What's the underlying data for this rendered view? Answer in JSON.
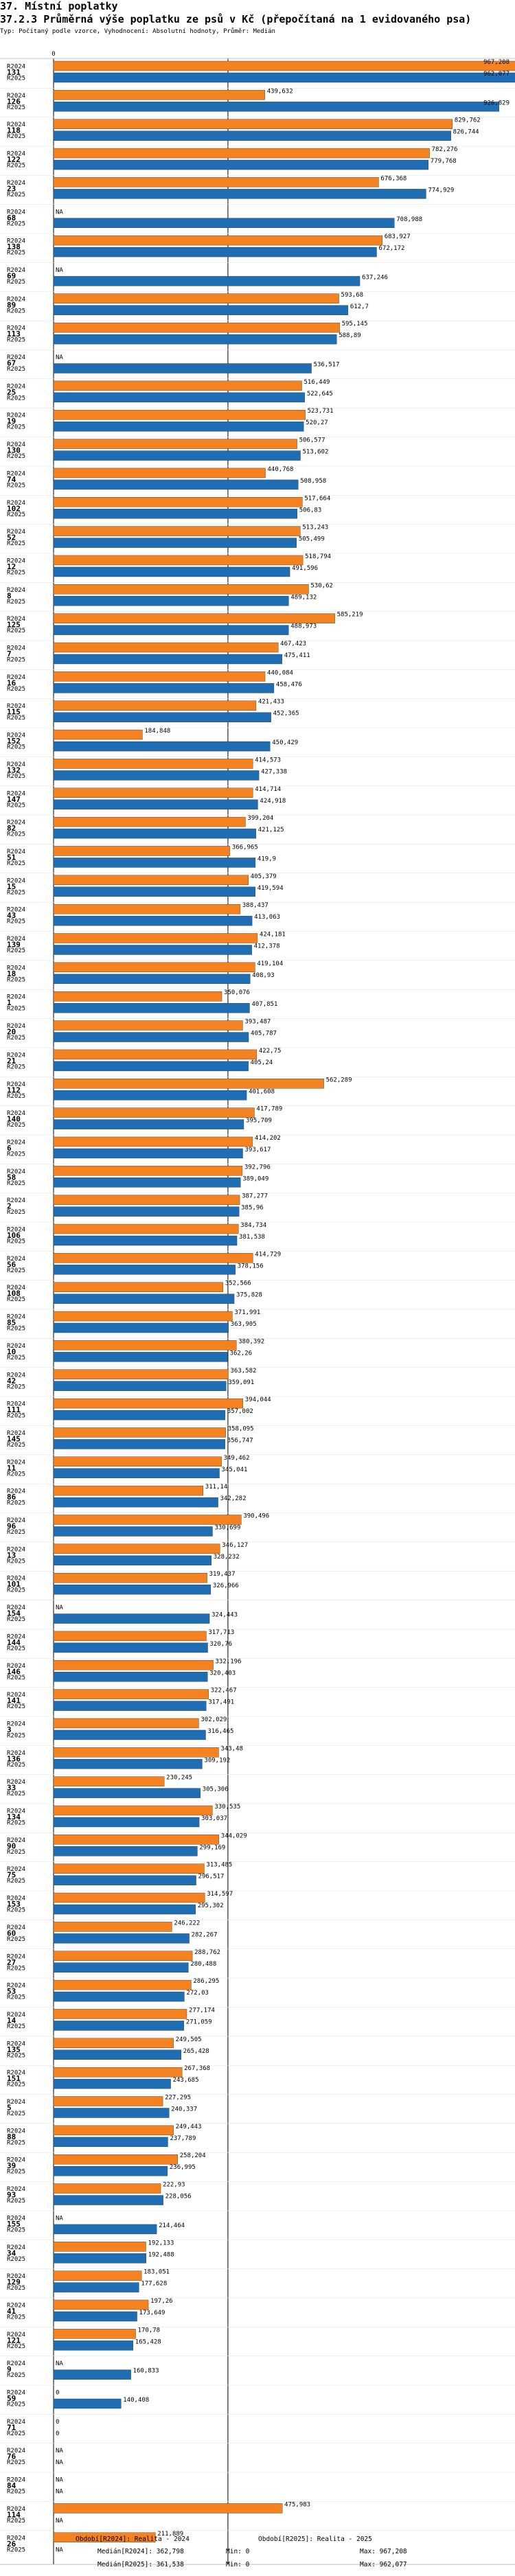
{
  "header": {
    "title": "37. Místní poplatky",
    "subtitle": "37.2.3 Průměrná výše poplatku ze psů v Kč (přepočítaná na 1 evidovaného psa)",
    "note": "Typ: Počítaný podle vzorce, Vyhodnocení: Absolutní hodnoty, Průměr: Medián"
  },
  "footer": {
    "period_2024": "Období[R2024]: Realita - 2024",
    "period_2025": "Období[R2025]: Realita - 2025",
    "median_2024": "Medián[R2024]: 362,798",
    "median_2025": "Medián[R2025]: 361,538",
    "min_2024": "Min: 0",
    "min_2025": "Min: 0",
    "max_2024": "Max: 967,208",
    "max_2025": "Max: 962,077"
  },
  "chart_data": {
    "type": "bar",
    "orientation": "horizontal",
    "title": "37.2.3 Průměrná výše poplatku ze psů v Kč (přepočítaná na 1 evidovaného psa)",
    "x_tick_label": "0",
    "xlim": [
      0,
      967.208
    ],
    "colors": {
      "R2024": "#f58220",
      "R2025": "#1f6db3"
    },
    "series_names": [
      "R2024",
      "R2025"
    ],
    "categories": [
      {
        "label": "131",
        "R2024": {
          "v": 967.208,
          "t": "967,208"
        },
        "R2025": {
          "v": 962.077,
          "t": "962,077"
        }
      },
      {
        "label": "126",
        "R2024": {
          "v": 439.632,
          "t": "439,632"
        },
        "R2025": {
          "v": 926.829,
          "t": "926,829"
        }
      },
      {
        "label": "118",
        "R2024": {
          "v": 829.762,
          "t": "829,762"
        },
        "R2025": {
          "v": 826.744,
          "t": "826,744"
        }
      },
      {
        "label": "122",
        "R2024": {
          "v": 782.276,
          "t": "782,276"
        },
        "R2025": {
          "v": 779.768,
          "t": "779,768"
        }
      },
      {
        "label": "23",
        "R2024": {
          "v": 676.368,
          "t": "676,368"
        },
        "R2025": {
          "v": 774.929,
          "t": "774,929"
        }
      },
      {
        "label": "68",
        "R2024": {
          "v": null,
          "t": "NA"
        },
        "R2025": {
          "v": 708.988,
          "t": "708,988"
        }
      },
      {
        "label": "138",
        "R2024": {
          "v": 683.927,
          "t": "683,927"
        },
        "R2025": {
          "v": 672.172,
          "t": "672,172"
        }
      },
      {
        "label": "69",
        "R2024": {
          "v": null,
          "t": "NA"
        },
        "R2025": {
          "v": 637.246,
          "t": "637,246"
        }
      },
      {
        "label": "89",
        "R2024": {
          "v": 593.68,
          "t": "593,68"
        },
        "R2025": {
          "v": 612.7,
          "t": "612,7"
        }
      },
      {
        "label": "113",
        "R2024": {
          "v": 595.145,
          "t": "595,145"
        },
        "R2025": {
          "v": 588.89,
          "t": "588,89"
        }
      },
      {
        "label": "67",
        "R2024": {
          "v": null,
          "t": "NA"
        },
        "R2025": {
          "v": 536.517,
          "t": "536,517"
        }
      },
      {
        "label": "25",
        "R2024": {
          "v": 516.449,
          "t": "516,449"
        },
        "R2025": {
          "v": 522.645,
          "t": "522,645"
        }
      },
      {
        "label": "19",
        "R2024": {
          "v": 523.731,
          "t": "523,731"
        },
        "R2025": {
          "v": 520.27,
          "t": "520,27"
        }
      },
      {
        "label": "130",
        "R2024": {
          "v": 506.577,
          "t": "506,577"
        },
        "R2025": {
          "v": 513.602,
          "t": "513,602"
        }
      },
      {
        "label": "74",
        "R2024": {
          "v": 440.768,
          "t": "440,768"
        },
        "R2025": {
          "v": 508.958,
          "t": "508,958"
        }
      },
      {
        "label": "102",
        "R2024": {
          "v": 517.664,
          "t": "517,664"
        },
        "R2025": {
          "v": 506.83,
          "t": "506,83"
        }
      },
      {
        "label": "52",
        "R2024": {
          "v": 513.243,
          "t": "513,243"
        },
        "R2025": {
          "v": 505.499,
          "t": "505,499"
        }
      },
      {
        "label": "12",
        "R2024": {
          "v": 518.794,
          "t": "518,794"
        },
        "R2025": {
          "v": 491.596,
          "t": "491,596"
        }
      },
      {
        "label": "8",
        "R2024": {
          "v": 530.62,
          "t": "530,62"
        },
        "R2025": {
          "v": 489.132,
          "t": "489,132"
        }
      },
      {
        "label": "125",
        "R2024": {
          "v": 585.219,
          "t": "585,219"
        },
        "R2025": {
          "v": 488.973,
          "t": "488,973"
        }
      },
      {
        "label": "7",
        "R2024": {
          "v": 467.423,
          "t": "467,423"
        },
        "R2025": {
          "v": 475.411,
          "t": "475,411"
        }
      },
      {
        "label": "16",
        "R2024": {
          "v": 440.084,
          "t": "440,084"
        },
        "R2025": {
          "v": 458.476,
          "t": "458,476"
        }
      },
      {
        "label": "115",
        "R2024": {
          "v": 421.433,
          "t": "421,433"
        },
        "R2025": {
          "v": 452.365,
          "t": "452,365"
        }
      },
      {
        "label": "152",
        "R2024": {
          "v": 184.848,
          "t": "184,848"
        },
        "R2025": {
          "v": 450.429,
          "t": "450,429"
        }
      },
      {
        "label": "132",
        "R2024": {
          "v": 414.573,
          "t": "414,573"
        },
        "R2025": {
          "v": 427.338,
          "t": "427,338"
        }
      },
      {
        "label": "147",
        "R2024": {
          "v": 414.714,
          "t": "414,714"
        },
        "R2025": {
          "v": 424.918,
          "t": "424,918"
        }
      },
      {
        "label": "82",
        "R2024": {
          "v": 399.204,
          "t": "399,204"
        },
        "R2025": {
          "v": 421.125,
          "t": "421,125"
        }
      },
      {
        "label": "51",
        "R2024": {
          "v": 366.965,
          "t": "366,965"
        },
        "R2025": {
          "v": 419.9,
          "t": "419,9"
        }
      },
      {
        "label": "15",
        "R2024": {
          "v": 405.379,
          "t": "405,379"
        },
        "R2025": {
          "v": 419.594,
          "t": "419,594"
        }
      },
      {
        "label": "43",
        "R2024": {
          "v": 388.437,
          "t": "388,437"
        },
        "R2025": {
          "v": 413.063,
          "t": "413,063"
        }
      },
      {
        "label": "139",
        "R2024": {
          "v": 424.181,
          "t": "424,181"
        },
        "R2025": {
          "v": 412.378,
          "t": "412,378"
        }
      },
      {
        "label": "18",
        "R2024": {
          "v": 419.104,
          "t": "419,104"
        },
        "R2025": {
          "v": 408.93,
          "t": "408,93"
        }
      },
      {
        "label": "1",
        "R2024": {
          "v": 350.076,
          "t": "350,076"
        },
        "R2025": {
          "v": 407.851,
          "t": "407,851"
        }
      },
      {
        "label": "20",
        "R2024": {
          "v": 393.487,
          "t": "393,487"
        },
        "R2025": {
          "v": 405.787,
          "t": "405,787"
        }
      },
      {
        "label": "21",
        "R2024": {
          "v": 422.75,
          "t": "422,75"
        },
        "R2025": {
          "v": 405.24,
          "t": "405,24"
        }
      },
      {
        "label": "112",
        "R2024": {
          "v": 562.289,
          "t": "562,289"
        },
        "R2025": {
          "v": 401.608,
          "t": "401,608"
        }
      },
      {
        "label": "140",
        "R2024": {
          "v": 417.789,
          "t": "417,789"
        },
        "R2025": {
          "v": 395.709,
          "t": "395,709"
        }
      },
      {
        "label": "6",
        "R2024": {
          "v": 414.202,
          "t": "414,202"
        },
        "R2025": {
          "v": 393.617,
          "t": "393,617"
        }
      },
      {
        "label": "58",
        "R2024": {
          "v": 392.796,
          "t": "392,796"
        },
        "R2025": {
          "v": 389.049,
          "t": "389,049"
        }
      },
      {
        "label": "2",
        "R2024": {
          "v": 387.277,
          "t": "387,277"
        },
        "R2025": {
          "v": 385.96,
          "t": "385,96"
        }
      },
      {
        "label": "106",
        "R2024": {
          "v": 384.734,
          "t": "384,734"
        },
        "R2025": {
          "v": 381.538,
          "t": "381,538"
        }
      },
      {
        "label": "56",
        "R2024": {
          "v": 414.729,
          "t": "414,729"
        },
        "R2025": {
          "v": 378.156,
          "t": "378,156"
        }
      },
      {
        "label": "108",
        "R2024": {
          "v": 352.566,
          "t": "352,566"
        },
        "R2025": {
          "v": 375.828,
          "t": "375,828"
        }
      },
      {
        "label": "85",
        "R2024": {
          "v": 371.991,
          "t": "371,991"
        },
        "R2025": {
          "v": 363.905,
          "t": "363,905"
        }
      },
      {
        "label": "10",
        "R2024": {
          "v": 380.392,
          "t": "380,392"
        },
        "R2025": {
          "v": 362.26,
          "t": "362,26"
        }
      },
      {
        "label": "42",
        "R2024": {
          "v": 363.582,
          "t": "363,582"
        },
        "R2025": {
          "v": 359.091,
          "t": "359,091"
        }
      },
      {
        "label": "111",
        "R2024": {
          "v": 394.044,
          "t": "394,044"
        },
        "R2025": {
          "v": 357.002,
          "t": "357,002"
        }
      },
      {
        "label": "145",
        "R2024": {
          "v": 358.095,
          "t": "358,095"
        },
        "R2025": {
          "v": 356.747,
          "t": "356,747"
        }
      },
      {
        "label": "11",
        "R2024": {
          "v": 349.462,
          "t": "349,462"
        },
        "R2025": {
          "v": 345.041,
          "t": "345,041"
        }
      },
      {
        "label": "86",
        "R2024": {
          "v": 311.14,
          "t": "311,14"
        },
        "R2025": {
          "v": 342.282,
          "t": "342,282"
        }
      },
      {
        "label": "96",
        "R2024": {
          "v": 390.496,
          "t": "390,496"
        },
        "R2025": {
          "v": 330.699,
          "t": "330,699"
        }
      },
      {
        "label": "13",
        "R2024": {
          "v": 346.127,
          "t": "346,127"
        },
        "R2025": {
          "v": 328.232,
          "t": "328,232"
        }
      },
      {
        "label": "101",
        "R2024": {
          "v": 319.437,
          "t": "319,437"
        },
        "R2025": {
          "v": 326.966,
          "t": "326,966"
        }
      },
      {
        "label": "154",
        "R2024": {
          "v": null,
          "t": "NA"
        },
        "R2025": {
          "v": 324.443,
          "t": "324,443"
        }
      },
      {
        "label": "144",
        "R2024": {
          "v": 317.713,
          "t": "317,713"
        },
        "R2025": {
          "v": 320.76,
          "t": "320,76"
        }
      },
      {
        "label": "146",
        "R2024": {
          "v": 332.196,
          "t": "332,196"
        },
        "R2025": {
          "v": 320.403,
          "t": "320,403"
        }
      },
      {
        "label": "141",
        "R2024": {
          "v": 322.467,
          "t": "322,467"
        },
        "R2025": {
          "v": 317.491,
          "t": "317,491"
        }
      },
      {
        "label": "3",
        "R2024": {
          "v": 302.029,
          "t": "302,029"
        },
        "R2025": {
          "v": 316.465,
          "t": "316,465"
        }
      },
      {
        "label": "136",
        "R2024": {
          "v": 343.48,
          "t": "343,48"
        },
        "R2025": {
          "v": 309.192,
          "t": "309,192"
        }
      },
      {
        "label": "33",
        "R2024": {
          "v": 230.245,
          "t": "230,245"
        },
        "R2025": {
          "v": 305.306,
          "t": "305,306"
        }
      },
      {
        "label": "134",
        "R2024": {
          "v": 330.535,
          "t": "330,535"
        },
        "R2025": {
          "v": 303.037,
          "t": "303,037"
        }
      },
      {
        "label": "90",
        "R2024": {
          "v": 344.029,
          "t": "344,029"
        },
        "R2025": {
          "v": 299.169,
          "t": "299,169"
        }
      },
      {
        "label": "75",
        "R2024": {
          "v": 313.485,
          "t": "313,485"
        },
        "R2025": {
          "v": 296.517,
          "t": "296,517"
        }
      },
      {
        "label": "153",
        "R2024": {
          "v": 314.597,
          "t": "314,597"
        },
        "R2025": {
          "v": 295.302,
          "t": "295,302"
        }
      },
      {
        "label": "60",
        "R2024": {
          "v": 246.222,
          "t": "246,222"
        },
        "R2025": {
          "v": 282.267,
          "t": "282,267"
        }
      },
      {
        "label": "27",
        "R2024": {
          "v": 288.762,
          "t": "288,762"
        },
        "R2025": {
          "v": 280.488,
          "t": "280,488"
        }
      },
      {
        "label": "53",
        "R2024": {
          "v": 286.295,
          "t": "286,295"
        },
        "R2025": {
          "v": 272.03,
          "t": "272,03"
        }
      },
      {
        "label": "14",
        "R2024": {
          "v": 277.174,
          "t": "277,174"
        },
        "R2025": {
          "v": 271.059,
          "t": "271,059"
        }
      },
      {
        "label": "135",
        "R2024": {
          "v": 249.505,
          "t": "249,505"
        },
        "R2025": {
          "v": 265.428,
          "t": "265,428"
        }
      },
      {
        "label": "151",
        "R2024": {
          "v": 267.368,
          "t": "267,368"
        },
        "R2025": {
          "v": 243.685,
          "t": "243,685"
        }
      },
      {
        "label": "5",
        "R2024": {
          "v": 227.295,
          "t": "227,295"
        },
        "R2025": {
          "v": 240.337,
          "t": "240,337"
        }
      },
      {
        "label": "88",
        "R2024": {
          "v": 249.443,
          "t": "249,443"
        },
        "R2025": {
          "v": 237.789,
          "t": "237,789"
        }
      },
      {
        "label": "39",
        "R2024": {
          "v": 258.204,
          "t": "258,204"
        },
        "R2025": {
          "v": 236.995,
          "t": "236,995"
        }
      },
      {
        "label": "93",
        "R2024": {
          "v": 222.93,
          "t": "222,93"
        },
        "R2025": {
          "v": 228.056,
          "t": "228,056"
        }
      },
      {
        "label": "155",
        "R2024": {
          "v": null,
          "t": "NA"
        },
        "R2025": {
          "v": 214.464,
          "t": "214,464"
        }
      },
      {
        "label": "34",
        "R2024": {
          "v": 192.133,
          "t": "192,133"
        },
        "R2025": {
          "v": 192.488,
          "t": "192,488"
        }
      },
      {
        "label": "129",
        "R2024": {
          "v": 183.051,
          "t": "183,051"
        },
        "R2025": {
          "v": 177.628,
          "t": "177,628"
        }
      },
      {
        "label": "41",
        "R2024": {
          "v": 197.26,
          "t": "197,26"
        },
        "R2025": {
          "v": 173.649,
          "t": "173,649"
        }
      },
      {
        "label": "121",
        "R2024": {
          "v": 170.78,
          "t": "170,78"
        },
        "R2025": {
          "v": 165.428,
          "t": "165,428"
        }
      },
      {
        "label": "9",
        "R2024": {
          "v": null,
          "t": "NA"
        },
        "R2025": {
          "v": 160.833,
          "t": "160,833"
        }
      },
      {
        "label": "59",
        "R2024": {
          "v": 0,
          "t": "0"
        },
        "R2025": {
          "v": 140.408,
          "t": "140,408"
        }
      },
      {
        "label": "71",
        "R2024": {
          "v": 0,
          "t": "0"
        },
        "R2025": {
          "v": 0,
          "t": "0"
        }
      },
      {
        "label": "76",
        "R2024": {
          "v": null,
          "t": "NA"
        },
        "R2025": {
          "v": null,
          "t": "NA"
        }
      },
      {
        "label": "84",
        "R2024": {
          "v": null,
          "t": "NA"
        },
        "R2025": {
          "v": null,
          "t": "NA"
        }
      },
      {
        "label": "114",
        "R2024": {
          "v": 475.983,
          "t": "475,983"
        },
        "R2025": {
          "v": null,
          "t": "NA"
        }
      },
      {
        "label": "26",
        "R2024": {
          "v": 211.889,
          "t": "211,889"
        },
        "R2025": {
          "v": null,
          "t": "NA"
        }
      }
    ]
  }
}
